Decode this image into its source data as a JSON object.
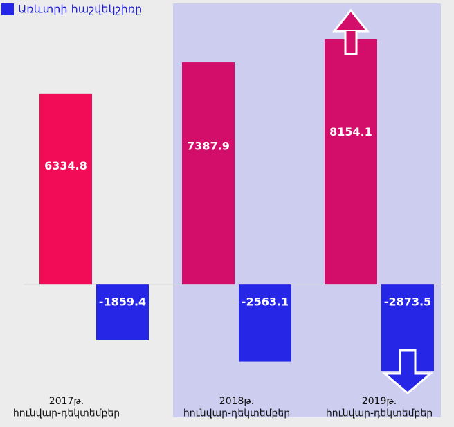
{
  "chart_data": {
    "type": "bar",
    "categories": [
      "2017թ.\nհունվար-դեկտեմբեր",
      "2018թ.\nհունվար-դեկտեմբեր",
      "2019թ.\nհունվար-դեկտեմբեր"
    ],
    "series": [
      {
        "colors": [
          "#f20c58",
          "#d20e6a",
          "#d20e6a"
        ],
        "values": [
          6334.8,
          7387.9,
          8154.1
        ]
      },
      {
        "name": "Առևտրի հաշվեկշիռը",
        "color": "#2626e6",
        "values": [
          -1859.4,
          -2563.1,
          -2873.5
        ]
      }
    ],
    "ylim": [
      -4000,
      9000
    ],
    "legend": "top-left"
  }
}
